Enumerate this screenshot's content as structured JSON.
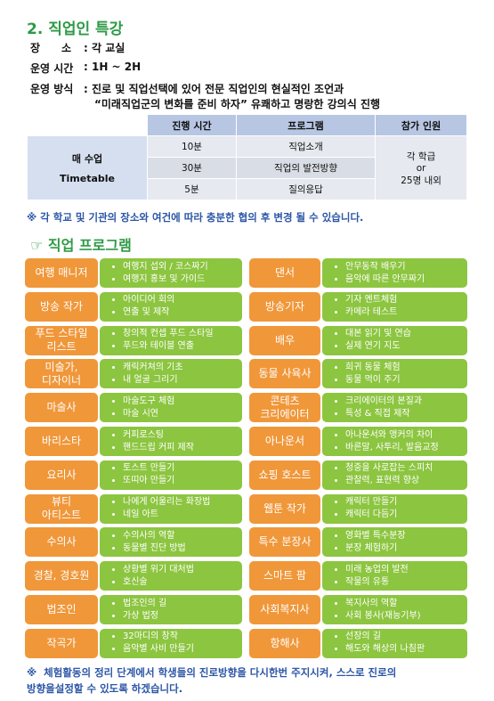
{
  "header": {
    "title": "2. 직업인 특강",
    "info": [
      {
        "label": "장　　소",
        "value": ": 각 교실"
      },
      {
        "label": "운영 시간",
        "value": ": 1H ~ 2H"
      },
      {
        "label": "운영 방식",
        "value": [
          ": 진로 및 직업선택에 있어 전문 직업인의 현실적인 조언과",
          "“미래직업군의 변화를 준비 하자” 유쾌하고 명랑한 강의식 진행"
        ]
      }
    ]
  },
  "table": {
    "row_header": [
      "매 수업",
      "Timetable"
    ],
    "columns": [
      "진행 시간",
      "프로그램",
      "참가 인원"
    ],
    "rows": [
      [
        "10분",
        "직업소개"
      ],
      [
        "30분",
        "직업의 발전방향"
      ],
      [
        "5분",
        "질의응답"
      ]
    ],
    "participants": [
      "각 학급",
      "or",
      "25명 내외"
    ]
  },
  "note": "※  각 학교 및 기관의 장소와 여건에 따라 충분한 협의 후  변경 될 수 있습니다.",
  "section_title": "☞ 직업 프로그램",
  "programs": {
    "left": [
      {
        "label": [
          "여행 매니저"
        ],
        "items": [
          "여행지 섭외 / 코스짜기",
          "여행지 홍보 및 가이드"
        ]
      },
      {
        "label": [
          "방송 작가"
        ],
        "items": [
          "아이디어 회의",
          "연출 및 제작"
        ]
      },
      {
        "label": [
          "푸드 스타일",
          "리스트"
        ],
        "items": [
          "창의적 컨셉 푸드 스타일",
          "푸드와 테이블 연출"
        ]
      },
      {
        "label": [
          "미술가,",
          "디자이너"
        ],
        "items": [
          "캐릭커쳐의 기초",
          "내 얼굴 그리기"
        ]
      },
      {
        "label": [
          "마술사"
        ],
        "items": [
          "마술도구 체험",
          "마술 시연"
        ]
      },
      {
        "label": [
          "바리스타"
        ],
        "items": [
          "커피로스팅",
          "핸드드립 커피 제작"
        ]
      },
      {
        "label": [
          "요리사"
        ],
        "items": [
          "토스트 만들기",
          "또띠아 만들기"
        ]
      },
      {
        "label": [
          "뷰티",
          "아티스트"
        ],
        "items": [
          "나에게 어울리는 화장법",
          "네일 아트"
        ]
      },
      {
        "label": [
          "수의사"
        ],
        "items": [
          "수의사의 역할",
          "동물별 진단 방법"
        ]
      },
      {
        "label": [
          "경찰, 경호원"
        ],
        "items": [
          "상황별 위기 대처법",
          "호신술"
        ]
      },
      {
        "label": [
          "법조인"
        ],
        "items": [
          "법조인의 길",
          "가상 법정"
        ]
      },
      {
        "label": [
          "작곡가"
        ],
        "items": [
          "32마디의 창작",
          "음악별 사비 만들기"
        ]
      }
    ],
    "right": [
      {
        "label": [
          "댄서"
        ],
        "items": [
          "안무동작 배우기",
          "음악에 따른 안무짜기"
        ]
      },
      {
        "label": [
          "방송기자"
        ],
        "items": [
          "기자 멘트체험",
          "카메라 테스트"
        ]
      },
      {
        "label": [
          "배우"
        ],
        "items": [
          "대본 읽기 및 연습",
          "실제 연기 지도"
        ]
      },
      {
        "label": [
          "동물 사육사"
        ],
        "items": [
          "희귀 동물 체험",
          "동물 먹이 주기"
        ]
      },
      {
        "label": [
          "콘테츠",
          "크리에이터"
        ],
        "items": [
          "크리에이터의 본질과",
          "특성 & 직접 제작"
        ]
      },
      {
        "label": [
          "아나운서"
        ],
        "items": [
          "아나운서와 앵커의 차이",
          "바른말, 사투리, 발음교정"
        ]
      },
      {
        "label": [
          "쇼핑 호스트"
        ],
        "items": [
          "청중을 사로잡는 스피치",
          "관찰력, 표현력 향상"
        ]
      },
      {
        "label": [
          "웹툰 작가"
        ],
        "items": [
          "캐릭터 만들기",
          "캐릭터 다듬기"
        ]
      },
      {
        "label": [
          "특수 분장사"
        ],
        "items": [
          "영화별 특수분장",
          "분장 체험하기"
        ]
      },
      {
        "label": [
          "스마트 팜"
        ],
        "items": [
          "미래 농업의 발전",
          "작물의 유통"
        ]
      },
      {
        "label": [
          "사회복지사"
        ],
        "items": [
          "복지사의 역할",
          "사회 봉사(재능기부)"
        ]
      },
      {
        "label": [
          "항해사"
        ],
        "items": [
          "선장의 길",
          "해도와 해상의 나침판"
        ]
      }
    ]
  },
  "footer": [
    "※  체험활동의 정리 단계에서 학생들의 진로방향을 다시한번 주지시켜, 스스로 진로의",
    "방향을설정할 수 있도록 하겠습니다."
  ]
}
